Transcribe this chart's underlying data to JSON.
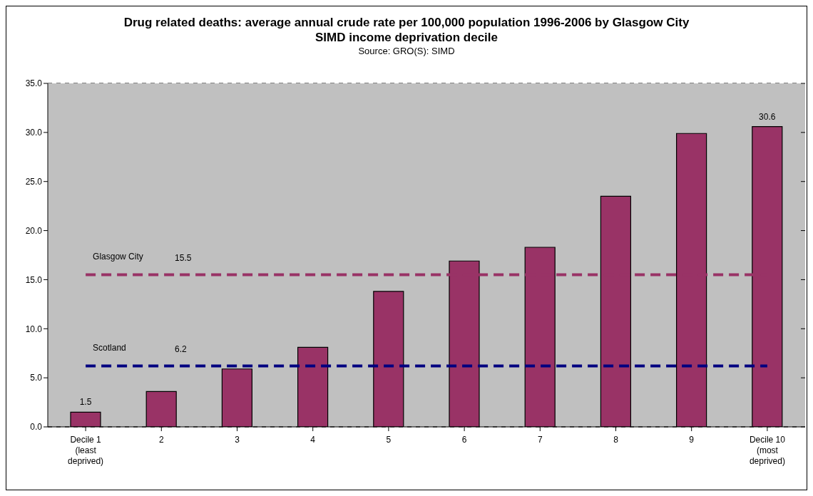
{
  "chart_data": {
    "type": "bar",
    "title": "Drug related deaths: average annual crude rate per 100,000 population 1996-2006 by Glasgow City SIMD income deprivation decile",
    "subtitle": "Source: GRO(S): SIMD",
    "categories": [
      "Decile 1 (least deprived)",
      "2",
      "3",
      "4",
      "5",
      "6",
      "7",
      "8",
      "9",
      "Decile 10 (most deprived)"
    ],
    "values": [
      1.5,
      3.6,
      5.9,
      8.1,
      13.8,
      16.9,
      18.3,
      23.5,
      29.9,
      30.6
    ],
    "value_labels": [
      "1.5",
      null,
      null,
      null,
      null,
      null,
      null,
      null,
      null,
      "30.6"
    ],
    "color": "#993366",
    "ylim": [
      0,
      35
    ],
    "yticks": [
      {
        "value": 0,
        "label": "0.0"
      },
      {
        "value": 5,
        "label": "5.0"
      },
      {
        "value": 10,
        "label": "10.0"
      },
      {
        "value": 15,
        "label": "15.0"
      },
      {
        "value": 20,
        "label": "20.0"
      },
      {
        "value": 25,
        "label": "25.0"
      },
      {
        "value": 30,
        "label": "30.0"
      },
      {
        "value": 35,
        "label": "35.0"
      }
    ],
    "grid": "y",
    "ref_lines": [
      {
        "axis": "y",
        "value": 15.5,
        "label": "Glasgow City",
        "color": "#993366",
        "line_style": "dashed"
      },
      {
        "axis": "y",
        "value": 6.2,
        "label": "Scotland",
        "color": "#000080",
        "line_style": "dashed"
      }
    ],
    "annotations": [
      {
        "text": "15.5",
        "y": 15.5
      },
      {
        "text": "6.2",
        "y": 6.2
      }
    ]
  }
}
